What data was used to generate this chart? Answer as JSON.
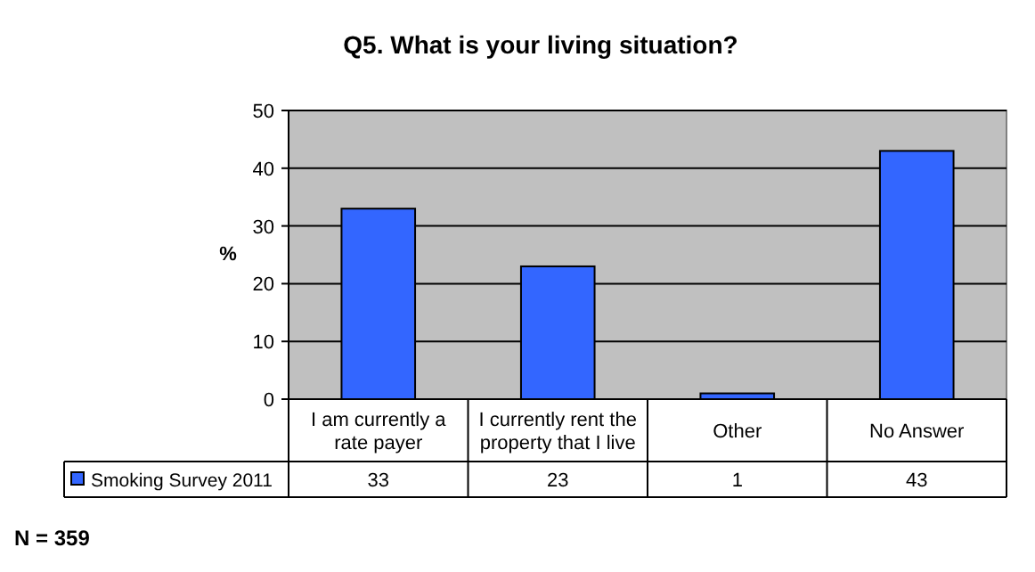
{
  "chart_data": {
    "type": "bar",
    "title": "Q5. What is your living situation?",
    "ylabel": "%",
    "categories": [
      "I am currently a rate payer",
      "I currently rent the property that I live",
      "Other",
      "No Answer"
    ],
    "series": [
      {
        "name": "Smoking Survey 2011",
        "color": "#3366ff",
        "values": [
          33,
          23,
          1,
          43
        ]
      }
    ],
    "ylim": [
      0,
      50
    ],
    "yticks": [
      0,
      10,
      20,
      30,
      40,
      50
    ],
    "grid": "y",
    "legend": "bottom",
    "data_labels": true,
    "annotations": [
      "N = 359"
    ]
  }
}
